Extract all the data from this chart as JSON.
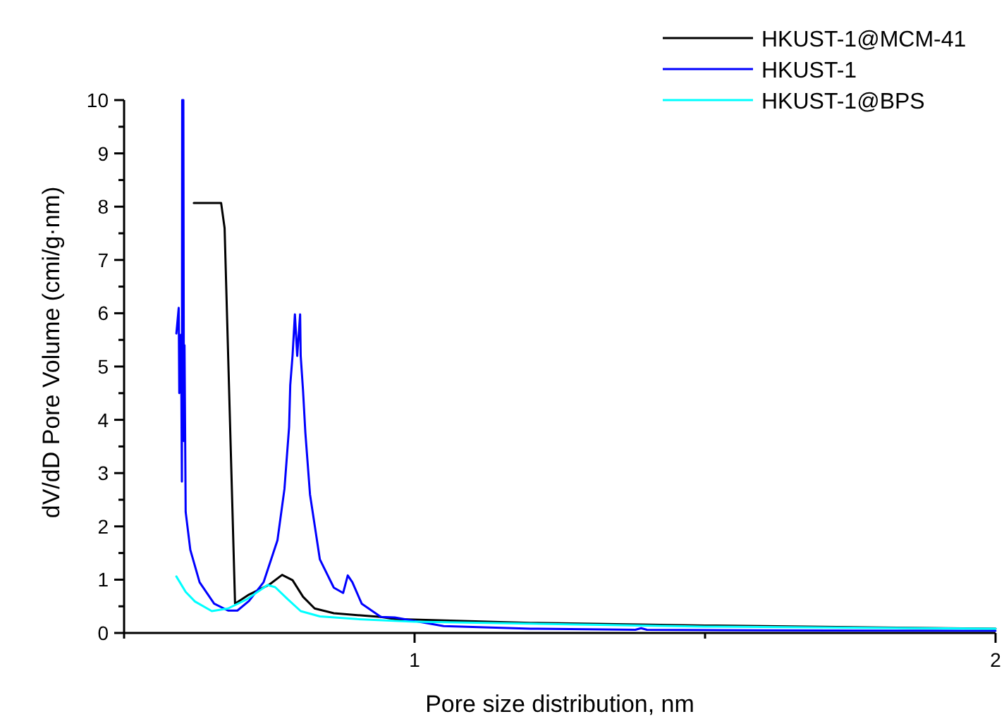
{
  "chart_data": {
    "type": "line",
    "xlabel": "Pore size distribution, nm",
    "ylabel": "dV/dD Pore Volume (cmi/g·nm)",
    "xlim": [
      0.5,
      2
    ],
    "xticks": [
      {
        "value": 0.5,
        "label": null
      },
      1,
      {
        "value": 1.5,
        "label": null
      },
      2
    ],
    "ylim": [
      0,
      10
    ],
    "yticks": [
      0,
      {
        "value": 0.5,
        "label": null
      },
      1,
      {
        "value": 1.5,
        "label": null
      },
      2,
      {
        "value": 2.5,
        "label": null
      },
      3,
      {
        "value": 3.5,
        "label": null
      },
      4,
      {
        "value": 4.5,
        "label": null
      },
      5,
      {
        "value": 5.5,
        "label": null
      },
      6,
      {
        "value": 6.5,
        "label": null
      },
      7,
      {
        "value": 7.5,
        "label": null
      },
      8,
      {
        "value": 8.5,
        "label": null
      },
      9,
      {
        "value": 9.5,
        "label": null
      },
      10
    ],
    "grid": false,
    "legend": "top right",
    "marker": "none",
    "line_style": "solid",
    "series": [
      {
        "name": "HKUST-1@MCM-41",
        "color": "#000000",
        "x": [
          0.62,
          0.667,
          0.673,
          0.691,
          0.715,
          0.749,
          0.772,
          0.79,
          0.808,
          0.828,
          0.861,
          0.942,
          0.966,
          1.2,
          1.5,
          2
        ],
        "values": [
          8.07,
          8.07,
          7.6,
          0.55,
          0.72,
          0.9,
          1.09,
          0.99,
          0.68,
          0.46,
          0.37,
          0.3,
          0.26,
          0.19,
          0.14,
          0.08
        ]
      },
      {
        "name": "HKUST-1",
        "color": "#0000ff",
        "x": [
          0.59,
          0.594,
          0.595,
          0.598,
          0.5995,
          0.6,
          0.602,
          0.603,
          0.604,
          0.606,
          0.614,
          0.63,
          0.655,
          0.679,
          0.695,
          0.715,
          0.74,
          0.764,
          0.776,
          0.784,
          0.786,
          0.79,
          0.794,
          0.798,
          0.803,
          0.804,
          0.808,
          0.812,
          0.82,
          0.837,
          0.861,
          0.877,
          0.885,
          0.893,
          0.909,
          0.942,
          0.966,
          1.05,
          1.2,
          1.38,
          1.39,
          1.4,
          1.6,
          2
        ],
        "values": [
          5.62,
          6.1,
          4.5,
          5.6,
          2.84,
          10,
          10,
          3.6,
          5.4,
          2.27,
          1.56,
          0.95,
          0.55,
          0.42,
          0.42,
          0.6,
          0.95,
          1.74,
          2.7,
          3.86,
          4.65,
          5.21,
          5.98,
          5.2,
          5.98,
          5.2,
          4.55,
          3.76,
          2.6,
          1.38,
          0.85,
          0.75,
          1.08,
          0.95,
          0.55,
          0.3,
          0.29,
          0.13,
          0.08,
          0.06,
          0.09,
          0.06,
          0.05,
          0.04
        ]
      },
      {
        "name": "HKUST-1@BPS",
        "color": "#00ffff",
        "x": [
          0.59,
          0.606,
          0.622,
          0.651,
          0.679,
          0.711,
          0.747,
          0.76,
          0.782,
          0.804,
          0.837,
          0.901,
          1,
          1.5,
          2
        ],
        "values": [
          1.06,
          0.77,
          0.59,
          0.41,
          0.46,
          0.63,
          0.9,
          0.86,
          0.63,
          0.41,
          0.31,
          0.26,
          0.21,
          0.12,
          0.08
        ]
      }
    ]
  }
}
